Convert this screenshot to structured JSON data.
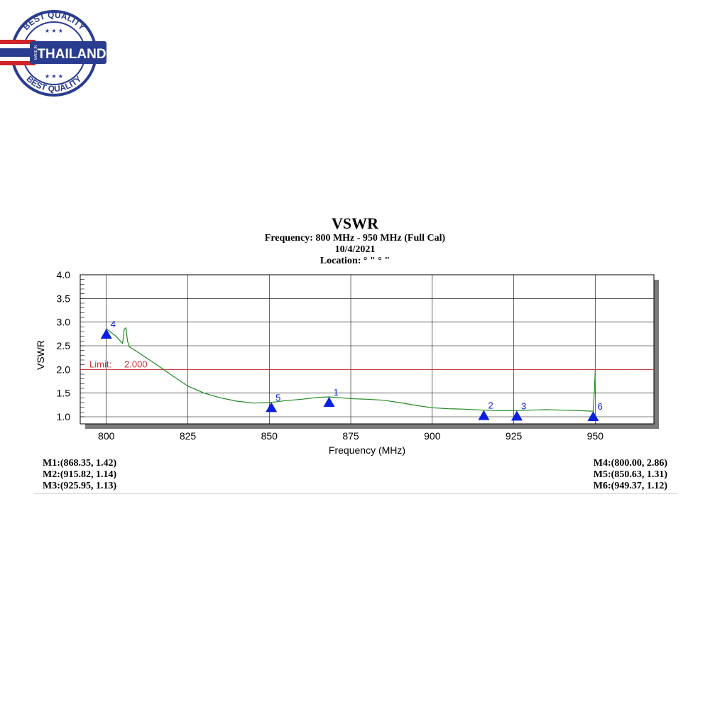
{
  "badge": {
    "top_text": "BEST QUALITY",
    "bottom_text": "BEST QUALITY",
    "made_in": "MADE IN",
    "country": "THAILAND",
    "colors": {
      "ring": "#2a3c8f",
      "flag_red": "#d1232a",
      "flag_blue": "#2a3c8f"
    }
  },
  "header": {
    "title": "VSWR",
    "frequency": "Frequency: 800 MHz - 950 MHz (Full Cal)",
    "date": "10/4/2021",
    "location": "Location: ° \"  ° \""
  },
  "chart_data": {
    "type": "line",
    "title": "VSWR",
    "xlabel": "Frequency (MHz)",
    "ylabel": "VSWR",
    "xlim": [
      792,
      968
    ],
    "ylim": [
      0.85,
      4.0
    ],
    "x_ticks": [
      "800",
      "825",
      "850",
      "875",
      "900",
      "925",
      "950"
    ],
    "x_tick_values": [
      800,
      825,
      850,
      875,
      900,
      925,
      950
    ],
    "y_ticks": [
      "1.0",
      "1.5",
      "2.0",
      "2.5",
      "3.0",
      "3.5",
      "4.0"
    ],
    "y_tick_values": [
      1.0,
      1.5,
      2.0,
      2.5,
      3.0,
      3.5,
      4.0
    ],
    "grid": true,
    "limit": {
      "label": "Limit:",
      "value_text": "2.000",
      "value": 2.0,
      "color": "#cc3333"
    },
    "series": [
      {
        "color": "#1e8a1e",
        "x": [
          800,
          803,
          805,
          805.5,
          806,
          806.5,
          807,
          810,
          815,
          820,
          825,
          830,
          835,
          840,
          845,
          850,
          855,
          860,
          865,
          868.35,
          872,
          876,
          880,
          885,
          890,
          895,
          900,
          905,
          910,
          915.82,
          920,
          925.95,
          930,
          935,
          940,
          945,
          948.5,
          949,
          949.37,
          949.7,
          950
        ],
        "y": [
          2.86,
          2.7,
          2.55,
          2.85,
          2.88,
          2.6,
          2.48,
          2.35,
          2.12,
          1.88,
          1.65,
          1.5,
          1.4,
          1.33,
          1.29,
          1.3,
          1.34,
          1.37,
          1.41,
          1.42,
          1.4,
          1.38,
          1.37,
          1.35,
          1.3,
          1.24,
          1.19,
          1.17,
          1.16,
          1.14,
          1.13,
          1.13,
          1.14,
          1.15,
          1.14,
          1.13,
          1.12,
          1.12,
          1.12,
          1.5,
          1.99
        ]
      }
    ],
    "markers": [
      {
        "id": "1",
        "x": 868.35,
        "y": 1.42
      },
      {
        "id": "2",
        "x": 915.82,
        "y": 1.14
      },
      {
        "id": "3",
        "x": 925.95,
        "y": 1.13
      },
      {
        "id": "4",
        "x": 800.0,
        "y": 2.86
      },
      {
        "id": "5",
        "x": 850.63,
        "y": 1.31
      },
      {
        "id": "6",
        "x": 949.37,
        "y": 1.12
      }
    ],
    "marker_color": "#0a1fe0"
  },
  "marker_readouts": {
    "left": [
      "M1:(868.35,  1.42)",
      "M2:(915.82,  1.14)",
      "M3:(925.95,  1.13)"
    ],
    "right": [
      "M4:(800.00,  2.86)",
      "M5:(850.63,  1.31)",
      "M6:(949.37,  1.12)"
    ]
  }
}
